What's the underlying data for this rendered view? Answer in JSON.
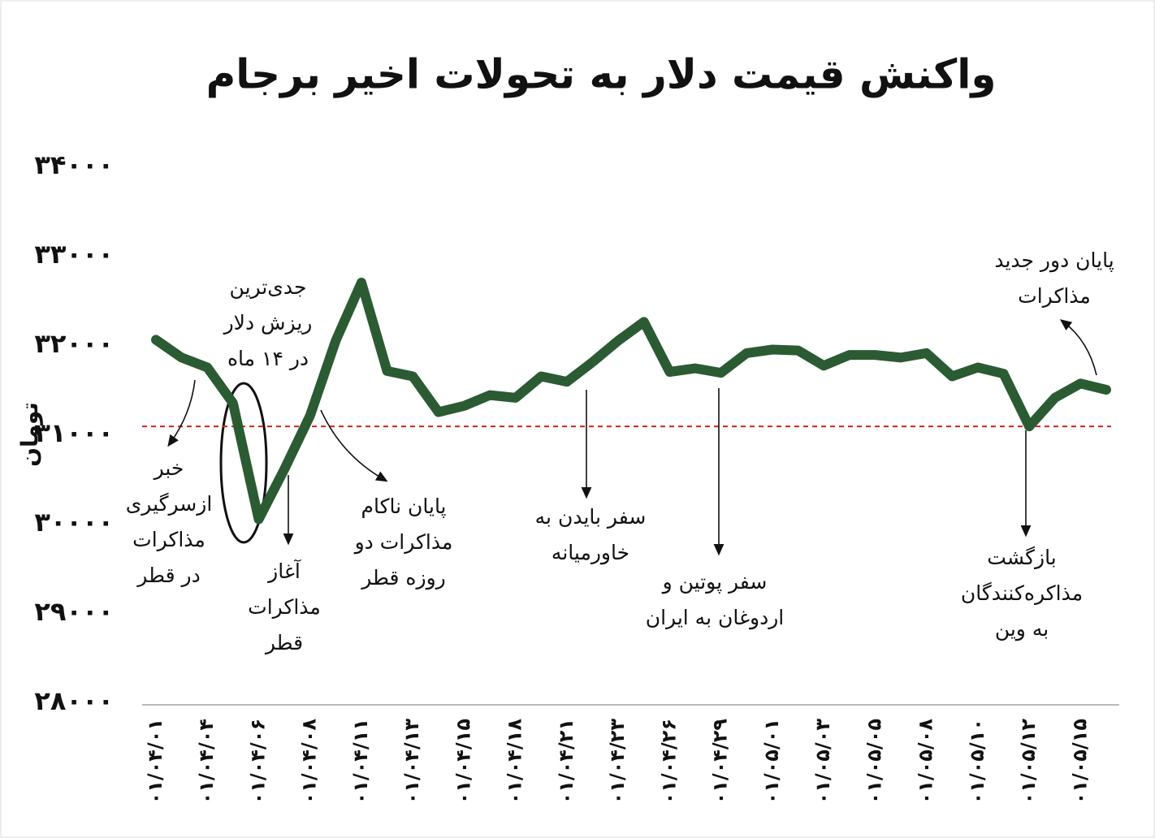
{
  "chart_data": {
    "type": "line",
    "title": "واکنش قیمت دلار به تحولات اخیر برجام",
    "y_label": "تومان",
    "categories": [
      "۰۱/۰۴/۰۱",
      null,
      "۰۱/۰۴/۰۴",
      null,
      "۰۱/۰۴/۰۶",
      null,
      "۰۱/۰۴/۰۸",
      null,
      "۰۱/۰۴/۱۱",
      null,
      "۰۱/۰۴/۱۳",
      null,
      "۰۱/۰۴/۱۵",
      null,
      "۰۱/۰۴/۱۸",
      null,
      "۰۱/۰۴/۲۱",
      null,
      "۰۱/۰۴/۲۳",
      null,
      "۰۱/۰۴/۲۶",
      null,
      "۰۱/۰۴/۲۹",
      null,
      "۰۱/۰۵/۰۱",
      null,
      "۰۱/۰۵/۰۳",
      null,
      "۰۱/۰۵/۰۵",
      null,
      "۰۱/۰۵/۰۸",
      null,
      "۰۱/۰۵/۱۰",
      null,
      "۰۱/۰۵/۱۲",
      null,
      "۰۱/۰۵/۱۵",
      null
    ],
    "series": [
      {
        "name": "دلار",
        "color": "#2b5b33",
        "values": [
          32060,
          31860,
          31750,
          31350,
          30050,
          30610,
          31210,
          32050,
          32700,
          31710,
          31650,
          31250,
          31320,
          31440,
          31410,
          31650,
          31590,
          31810,
          32050,
          32260,
          31700,
          31740,
          31690,
          31910,
          31950,
          31940,
          31770,
          31890,
          31890,
          31860,
          31910,
          31650,
          31750,
          31680,
          31090,
          31410,
          31570,
          31500
        ]
      }
    ],
    "reference_line": {
      "value": 31090,
      "color": "#d62020"
    },
    "ylim": [
      28000,
      34000
    ],
    "yticks": [
      {
        "value": 28000,
        "label": "۲۸۰۰۰"
      },
      {
        "value": 29000,
        "label": "۲۹۰۰۰"
      },
      {
        "value": 30000,
        "label": "۳۰۰۰۰"
      },
      {
        "value": 31000,
        "label": "۳۱۰۰۰"
      },
      {
        "value": 32000,
        "label": "۳۲۰۰۰"
      },
      {
        "value": 33000,
        "label": "۳۳۰۰۰"
      },
      {
        "value": 34000,
        "label": "۳۴۰۰۰"
      }
    ],
    "grid": false,
    "annotations": [
      {
        "lines": [
          "خبر",
          "ازسرگیری",
          "مذاکرات",
          "در قطر"
        ]
      },
      {
        "lines": [
          "جدی‌ترین",
          "ریزش دلار",
          "در ۱۴ ماه"
        ]
      },
      {
        "lines": [
          "آغاز",
          "مذاکرات",
          "قطر"
        ]
      },
      {
        "lines": [
          "پایان ناکام",
          "مذاکرات دو",
          "روزه قطر"
        ]
      },
      {
        "lines": [
          "سفر بایدن به",
          "خاورمیانه"
        ]
      },
      {
        "lines": [
          "سفر پوتین و",
          "اردوغان به ایران"
        ]
      },
      {
        "lines": [
          "بازگشت",
          "مذاکره‌کنندگان",
          "به وین"
        ]
      },
      {
        "lines": [
          "پایان دور جدید",
          "مذاکرات"
        ]
      }
    ]
  }
}
